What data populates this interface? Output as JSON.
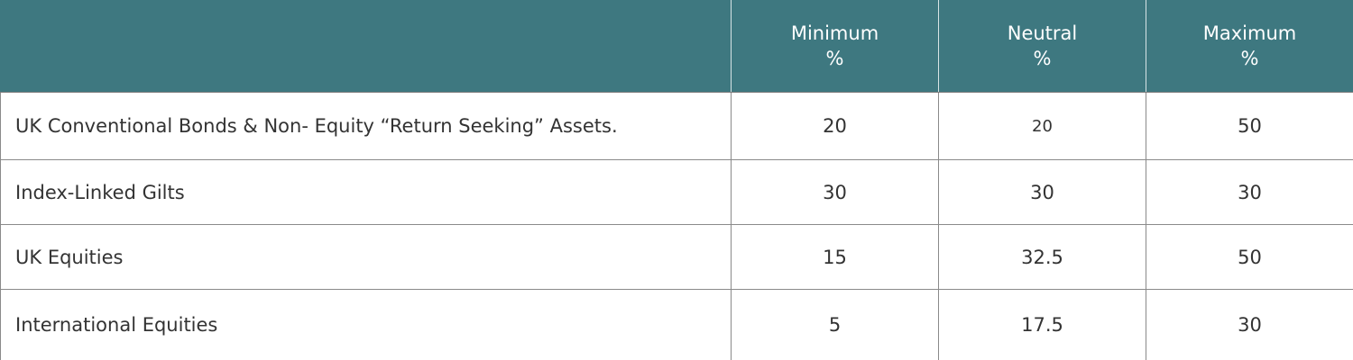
{
  "table": {
    "columns": [
      {
        "title": "Minimum",
        "unit": "%"
      },
      {
        "title": "Neutral",
        "unit": "%"
      },
      {
        "title": "Maximum",
        "unit": "%"
      }
    ],
    "rows": [
      {
        "label": "UK Conventional Bonds & Non- Equity “Return Seeking” Assets.",
        "values": [
          20,
          20,
          50
        ]
      },
      {
        "label": "Index-Linked Gilts",
        "values": [
          30,
          30,
          30
        ]
      },
      {
        "label": "UK Equities",
        "values": [
          15,
          32.5,
          50
        ]
      },
      {
        "label": "International Equities",
        "values": [
          5,
          17.5,
          30
        ]
      }
    ]
  }
}
